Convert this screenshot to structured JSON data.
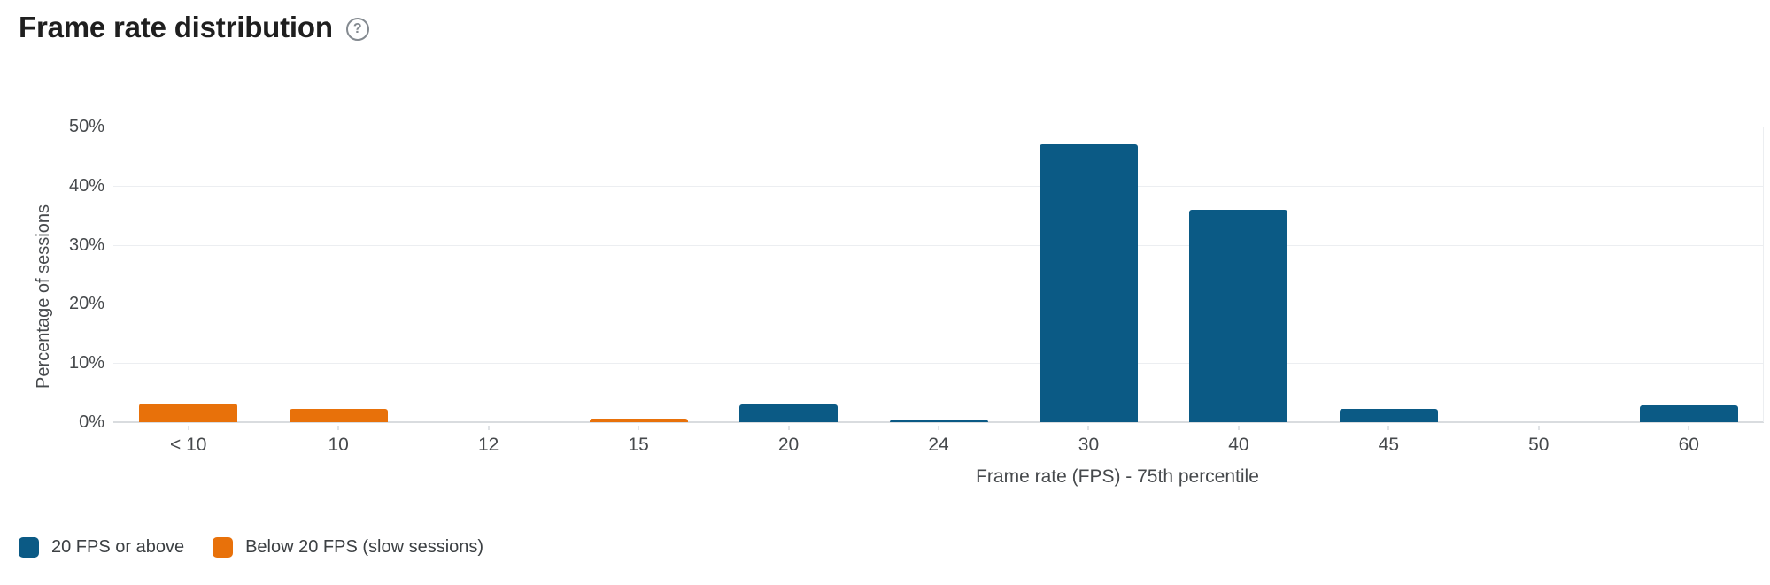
{
  "header": {
    "title": "Frame rate distribution",
    "help_glyph": "?"
  },
  "colors": {
    "series_blue": "#0b5a85",
    "series_orange": "#e8710a",
    "gridline": "#eceef1",
    "axis_line": "#d9dcdf",
    "text_primary": "#1f1f1f",
    "text_secondary": "#46494c"
  },
  "chart_data": {
    "type": "bar",
    "title": "Frame rate distribution",
    "categories": [
      "< 10",
      "10",
      "12",
      "15",
      "20",
      "24",
      "30",
      "40",
      "45",
      "50",
      "60"
    ],
    "series": [
      {
        "name": "20 FPS or above",
        "color": "#0b5a85",
        "values": [
          0,
          0,
          0,
          0,
          3.0,
          0.5,
          47,
          36,
          2.3,
          0,
          2.9
        ]
      },
      {
        "name": "Below 20 FPS (slow sessions)",
        "color": "#e8710a",
        "values": [
          3.2,
          2.2,
          0,
          0.6,
          0,
          0,
          0,
          0,
          0,
          0,
          0
        ]
      }
    ],
    "xlabel": "Frame rate (FPS) - 75th percentile",
    "ylabel": "Percentage of sessions",
    "y_ticks": [
      "0%",
      "10%",
      "20%",
      "30%",
      "40%",
      "50%"
    ],
    "y_tick_values": [
      0,
      10,
      20,
      30,
      40,
      50
    ],
    "ylim": [
      0,
      50
    ],
    "grid": true,
    "legend_position": "bottom-left"
  }
}
